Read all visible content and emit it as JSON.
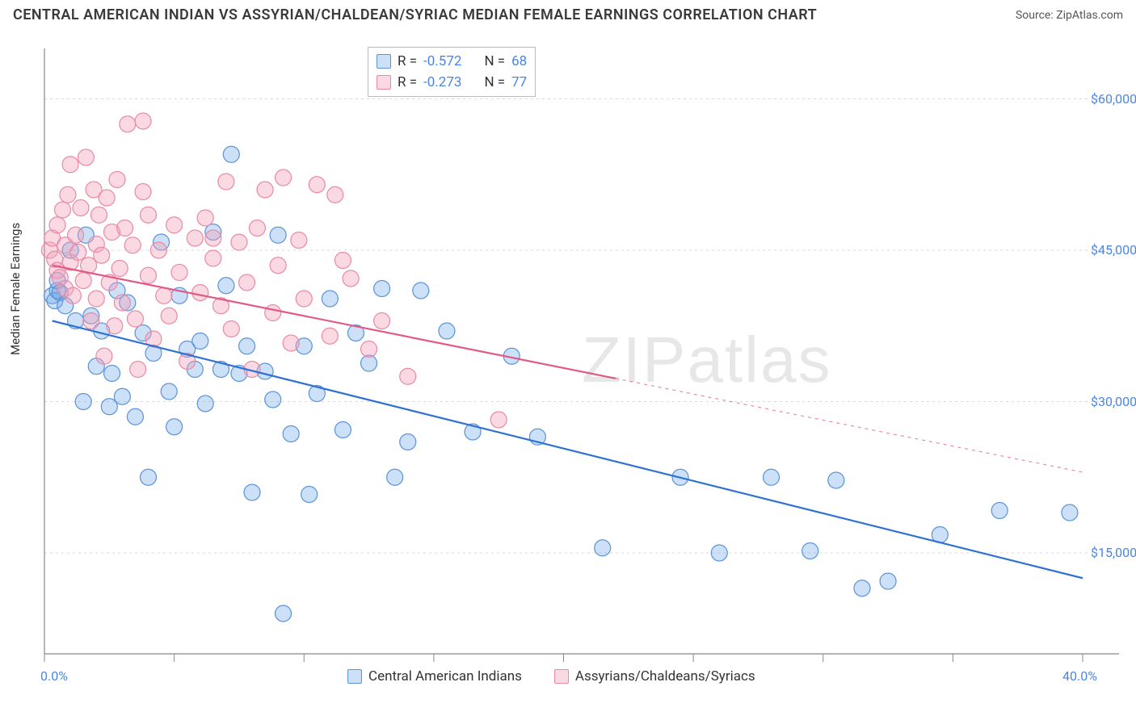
{
  "title": "CENTRAL AMERICAN INDIAN VS ASSYRIAN/CHALDEAN/SYRIAC MEDIAN FEMALE EARNINGS CORRELATION CHART",
  "source": "Source: ZipAtlas.com",
  "ylabel": "Median Female Earnings",
  "watermark": "ZIPatlas",
  "chart": {
    "type": "scatter",
    "xlim": [
      0,
      40
    ],
    "ylim": [
      5000,
      65000
    ],
    "ytick_values": [
      15000,
      30000,
      45000,
      60000
    ],
    "ytick_labels": [
      "$15,000",
      "$30,000",
      "$45,000",
      "$60,000"
    ],
    "xtick_values": [
      0,
      5,
      10,
      15,
      20,
      25,
      30,
      35,
      40
    ],
    "xtick_labels_shown": {
      "0": "0.0%",
      "40": "40.0%"
    },
    "grid_color": "#d8d8d8",
    "axis_color": "#888888",
    "background_color": "#ffffff",
    "marker_radius": 10,
    "marker_opacity": 0.5,
    "line_width": 2.2
  },
  "series": [
    {
      "name": "Central American Indians",
      "color": "#6da6e8",
      "fill": "rgba(109,166,232,0.35)",
      "stroke": "#5b93d6",
      "line_color": "#2f72d4",
      "R": "-0.572",
      "N": "68",
      "trend": {
        "x1": 0.3,
        "y1": 38000,
        "x2": 40,
        "y2": 12500,
        "dash_from_x": null
      },
      "points": [
        [
          0.3,
          40500
        ],
        [
          0.4,
          40000
        ],
        [
          0.5,
          41000
        ],
        [
          0.5,
          42000
        ],
        [
          0.6,
          40800
        ],
        [
          0.8,
          39500
        ],
        [
          1.0,
          45000
        ],
        [
          1.2,
          38000
        ],
        [
          1.5,
          30000
        ],
        [
          1.6,
          46500
        ],
        [
          1.8,
          38500
        ],
        [
          2.0,
          33500
        ],
        [
          2.2,
          37000
        ],
        [
          2.5,
          29500
        ],
        [
          2.6,
          32800
        ],
        [
          2.8,
          41000
        ],
        [
          3.0,
          30500
        ],
        [
          3.2,
          39800
        ],
        [
          3.5,
          28500
        ],
        [
          3.8,
          36800
        ],
        [
          4.0,
          22500
        ],
        [
          4.2,
          34800
        ],
        [
          4.5,
          45800
        ],
        [
          4.8,
          31000
        ],
        [
          5.0,
          27500
        ],
        [
          5.2,
          40500
        ],
        [
          5.5,
          35200
        ],
        [
          5.8,
          33200
        ],
        [
          6.0,
          36000
        ],
        [
          6.2,
          29800
        ],
        [
          6.5,
          46800
        ],
        [
          6.8,
          33200
        ],
        [
          7.0,
          41500
        ],
        [
          7.2,
          54500
        ],
        [
          7.5,
          32800
        ],
        [
          7.8,
          35500
        ],
        [
          8.0,
          21000
        ],
        [
          8.5,
          33000
        ],
        [
          8.8,
          30200
        ],
        [
          9.0,
          46500
        ],
        [
          9.2,
          9000
        ],
        [
          9.5,
          26800
        ],
        [
          10.0,
          35500
        ],
        [
          10.2,
          20800
        ],
        [
          10.5,
          30800
        ],
        [
          11.0,
          40200
        ],
        [
          11.5,
          27200
        ],
        [
          12.0,
          36800
        ],
        [
          12.5,
          33800
        ],
        [
          13.0,
          41200
        ],
        [
          13.5,
          22500
        ],
        [
          14.0,
          26000
        ],
        [
          14.5,
          41000
        ],
        [
          15.5,
          37000
        ],
        [
          16.5,
          27000
        ],
        [
          19.0,
          26500
        ],
        [
          21.5,
          15500
        ],
        [
          24.5,
          22500
        ],
        [
          26.0,
          15000
        ],
        [
          28.0,
          22500
        ],
        [
          29.5,
          15200
        ],
        [
          30.5,
          22200
        ],
        [
          31.5,
          11500
        ],
        [
          32.5,
          12200
        ],
        [
          34.5,
          16800
        ],
        [
          36.8,
          19200
        ],
        [
          39.5,
          19000
        ],
        [
          18.0,
          34500
        ]
      ]
    },
    {
      "name": "Assyrians/Chaldeans/Syriacs",
      "color": "#f2a0b8",
      "fill": "rgba(242,160,184,0.40)",
      "stroke": "#e88aa5",
      "line_color": "#e05a85",
      "R": "-0.273",
      "N": "77",
      "trend": {
        "x1": 0.3,
        "y1": 43500,
        "x2": 40,
        "y2": 23000,
        "dash_from_x": 22
      },
      "points": [
        [
          0.2,
          45000
        ],
        [
          0.3,
          46200
        ],
        [
          0.4,
          44100
        ],
        [
          0.5,
          43000
        ],
        [
          0.5,
          47500
        ],
        [
          0.6,
          42300
        ],
        [
          0.7,
          49000
        ],
        [
          0.8,
          45500
        ],
        [
          0.8,
          41200
        ],
        [
          0.9,
          50500
        ],
        [
          1.0,
          43800
        ],
        [
          1.0,
          53500
        ],
        [
          1.1,
          40500
        ],
        [
          1.2,
          46500
        ],
        [
          1.3,
          44800
        ],
        [
          1.4,
          49200
        ],
        [
          1.5,
          42000
        ],
        [
          1.6,
          54200
        ],
        [
          1.7,
          43500
        ],
        [
          1.8,
          38000
        ],
        [
          1.9,
          51000
        ],
        [
          2.0,
          45600
        ],
        [
          2.0,
          40200
        ],
        [
          2.1,
          48500
        ],
        [
          2.2,
          44500
        ],
        [
          2.3,
          34500
        ],
        [
          2.4,
          50200
        ],
        [
          2.5,
          41800
        ],
        [
          2.6,
          46800
        ],
        [
          2.7,
          37500
        ],
        [
          2.8,
          52000
        ],
        [
          2.9,
          43200
        ],
        [
          3.0,
          39800
        ],
        [
          3.1,
          47200
        ],
        [
          3.2,
          57500
        ],
        [
          3.4,
          45500
        ],
        [
          3.5,
          38200
        ],
        [
          3.6,
          33200
        ],
        [
          3.8,
          50800
        ],
        [
          3.8,
          57800
        ],
        [
          4.0,
          42500
        ],
        [
          4.0,
          48500
        ],
        [
          4.2,
          36200
        ],
        [
          4.4,
          45000
        ],
        [
          4.6,
          40500
        ],
        [
          4.8,
          38500
        ],
        [
          5.0,
          47500
        ],
        [
          5.2,
          42800
        ],
        [
          5.5,
          34000
        ],
        [
          5.8,
          46200
        ],
        [
          6.0,
          40800
        ],
        [
          6.2,
          48200
        ],
        [
          6.5,
          44200
        ],
        [
          6.5,
          46200
        ],
        [
          6.8,
          39500
        ],
        [
          7.0,
          51800
        ],
        [
          7.2,
          37200
        ],
        [
          7.5,
          45800
        ],
        [
          7.8,
          41800
        ],
        [
          8.0,
          33200
        ],
        [
          8.2,
          47200
        ],
        [
          8.5,
          51000
        ],
        [
          8.8,
          38800
        ],
        [
          9.0,
          43500
        ],
        [
          9.2,
          52200
        ],
        [
          9.5,
          35800
        ],
        [
          9.8,
          46000
        ],
        [
          10.0,
          40200
        ],
        [
          10.5,
          51500
        ],
        [
          11.0,
          36500
        ],
        [
          11.2,
          50500
        ],
        [
          11.8,
          42200
        ],
        [
          12.5,
          35200
        ],
        [
          13.0,
          38000
        ],
        [
          14.0,
          32500
        ],
        [
          17.5,
          28200
        ],
        [
          11.5,
          44000
        ]
      ]
    }
  ],
  "legend": {
    "stats_label_R": "R =",
    "stats_label_N": "N ="
  }
}
